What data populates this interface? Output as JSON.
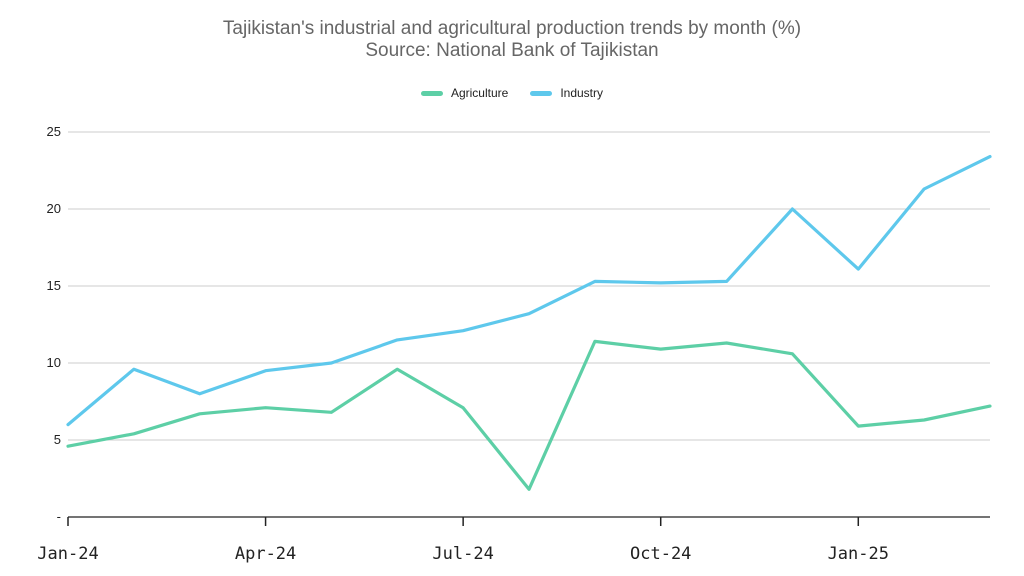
{
  "chart_data": {
    "type": "line",
    "title": "Tajikistan's industrial and agricultural production trends by month (%)",
    "subtitle": "Source: National Bank of Tajikistan",
    "x": [
      "Jan-24",
      "Feb-24",
      "Mar-24",
      "Apr-24",
      "May-24",
      "Jun-24",
      "Jul-24",
      "Aug-24",
      "Sep-24",
      "Oct-24",
      "Nov-24",
      "Dec-24",
      "Jan-25",
      "Feb-25",
      "Mar-25"
    ],
    "x_tick_labels": [
      "Jan-24",
      "Apr-24",
      "Jul-24",
      "Oct-24",
      "Jan-25"
    ],
    "y_tick_labels": [
      "-",
      "5",
      "10",
      "15",
      "20",
      "25"
    ],
    "ylim": [
      0,
      25
    ],
    "grid": true,
    "legend_position": "top-center",
    "series": [
      {
        "name": "Agriculture",
        "color": "#5dcfa6",
        "values": [
          4.6,
          5.4,
          6.7,
          7.1,
          6.8,
          9.6,
          7.1,
          1.8,
          11.4,
          10.9,
          11.3,
          10.6,
          5.9,
          6.3,
          7.2
        ]
      },
      {
        "name": "Industry",
        "color": "#5ec8ec",
        "values": [
          6.0,
          9.6,
          8.0,
          9.5,
          10.0,
          11.5,
          12.1,
          13.2,
          15.3,
          15.2,
          15.3,
          20.0,
          16.1,
          21.3,
          23.4
        ]
      }
    ]
  }
}
